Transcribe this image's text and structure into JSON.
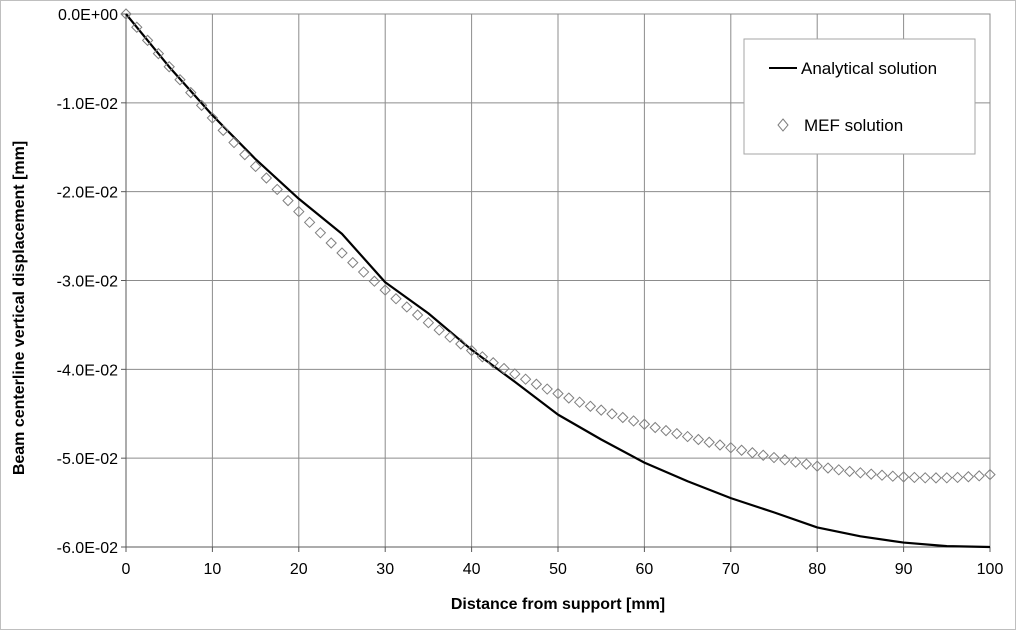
{
  "chart_data": {
    "type": "line",
    "title": "",
    "xlabel": "Distance from support [mm]",
    "ylabel": "Beam centerline vertical displacement [mm]",
    "xlim": [
      0,
      100
    ],
    "ylim": [
      -0.06,
      0
    ],
    "x_ticks": [
      "0",
      "10",
      "20",
      "30",
      "40",
      "50",
      "60",
      "70",
      "80",
      "90",
      "100"
    ],
    "y_ticks": [
      "0.0E+00",
      "-1.0E-02",
      "-2.0E-02",
      "-3.0E-02",
      "-4.0E-02",
      "-5.0E-02",
      "-6.0E-02"
    ],
    "grid": true,
    "legend_position": "top-right",
    "series": [
      {
        "name": "Analytical solution",
        "style": "line",
        "color": "#000000",
        "x": [
          0,
          5,
          10,
          15,
          20,
          25,
          30,
          35,
          40,
          45,
          50,
          55,
          60,
          65,
          70,
          75,
          80,
          85,
          90,
          95,
          100
        ],
        "y": [
          0,
          -0.00595,
          -0.0114,
          -0.01635,
          -0.0208,
          -0.02475,
          -0.0302,
          -0.0337,
          -0.0378,
          -0.0414,
          -0.0451,
          -0.0479,
          -0.0505,
          -0.0526,
          -0.0545,
          -0.0561,
          -0.0578,
          -0.0588,
          -0.0595,
          -0.0599,
          -0.06
        ]
      },
      {
        "name": "MEF solution",
        "style": "diamond-markers",
        "color": "#7f7f7f",
        "x": [
          0,
          1.25,
          2.5,
          3.75,
          5,
          6.25,
          7.5,
          8.75,
          10,
          11.25,
          12.5,
          13.75,
          15,
          16.25,
          17.5,
          18.75,
          20,
          21.25,
          22.5,
          23.75,
          25,
          26.25,
          27.5,
          28.75,
          30,
          31.25,
          32.5,
          33.75,
          35,
          36.25,
          37.5,
          38.75,
          40,
          41.25,
          42.5,
          43.75,
          45,
          46.25,
          47.5,
          48.75,
          50,
          51.25,
          52.5,
          53.75,
          55,
          56.25,
          57.5,
          58.75,
          60,
          61.25,
          62.5,
          63.75,
          65,
          66.25,
          67.5,
          68.75,
          70,
          71.25,
          72.5,
          73.75,
          75,
          76.25,
          77.5,
          78.75,
          80,
          81.25,
          82.5,
          83.75,
          85,
          86.25,
          87.5,
          88.75,
          90,
          91.25,
          92.5,
          93.75,
          95,
          96.25,
          97.5,
          98.75,
          100
        ],
        "y": [
          0,
          -0.00149,
          -0.00297,
          -0.00446,
          -0.00594,
          -0.0074,
          -0.00885,
          -0.01029,
          -0.0117,
          -0.0131,
          -0.01447,
          -0.01583,
          -0.01716,
          -0.01846,
          -0.01975,
          -0.02101,
          -0.02224,
          -0.02345,
          -0.02463,
          -0.02578,
          -0.0269,
          -0.02799,
          -0.02905,
          -0.03008,
          -0.03108,
          -0.03205,
          -0.03298,
          -0.03388,
          -0.03475,
          -0.03558,
          -0.03638,
          -0.03715,
          -0.03788,
          -0.03859,
          -0.03926,
          -0.03991,
          -0.04052,
          -0.04111,
          -0.04168,
          -0.04222,
          -0.04273,
          -0.04323,
          -0.0437,
          -0.04416,
          -0.04459,
          -0.04501,
          -0.04542,
          -0.04581,
          -0.04618,
          -0.04655,
          -0.0469,
          -0.04724,
          -0.04757,
          -0.0479,
          -0.04821,
          -0.04852,
          -0.04882,
          -0.04911,
          -0.04939,
          -0.04967,
          -0.04993,
          -0.05019,
          -0.05044,
          -0.05067,
          -0.0509,
          -0.05111,
          -0.05131,
          -0.05149,
          -0.05165,
          -0.0518,
          -0.05192,
          -0.05203,
          -0.05211,
          -0.05217,
          -0.05221,
          -0.05222,
          -0.05221,
          -0.05217,
          -0.05209,
          -0.05199,
          -0.05185
        ]
      }
    ]
  }
}
